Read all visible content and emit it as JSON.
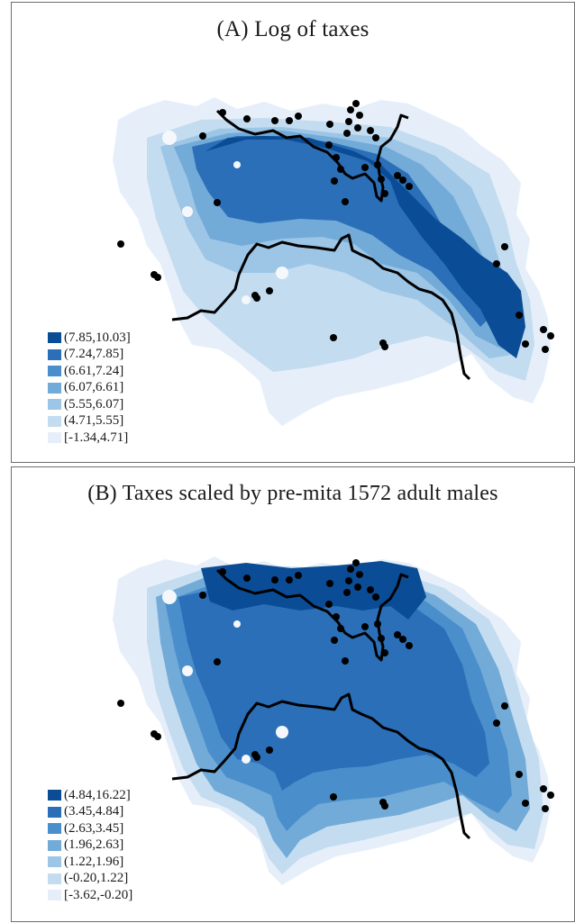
{
  "panels": [
    {
      "id": "A",
      "title": "(A) Log of taxes",
      "legend": [
        {
          "label": "(7.85,10.03]",
          "color": "#0a4d96"
        },
        {
          "label": "(7.24,7.85]",
          "color": "#2a6fb8"
        },
        {
          "label": "(6.61,7.24]",
          "color": "#4a8fcb"
        },
        {
          "label": "(6.07,6.61]",
          "color": "#72aad8"
        },
        {
          "label": "(5.55,6.07]",
          "color": "#9cc5e6"
        },
        {
          "label": "(4.71,5.55]",
          "color": "#c3dcf0"
        },
        {
          "label": "[-1.34,4.71]",
          "color": "#e6eff9"
        }
      ],
      "zones": [
        {
          "color": "#e6eff9"
        },
        {
          "color": "#c3dcf0"
        },
        {
          "color": "#9cc5e6"
        },
        {
          "color": "#72aad8"
        },
        {
          "color": "#2a6fb8"
        },
        {
          "color": "#0a4d96"
        }
      ]
    },
    {
      "id": "B",
      "title": "(B) Taxes scaled by pre-mita 1572 adult males",
      "legend": [
        {
          "label": "(4.84,16.22]",
          "color": "#0a4d96"
        },
        {
          "label": "(3.45,4.84]",
          "color": "#2a6fb8"
        },
        {
          "label": "(2.63,3.45]",
          "color": "#4a8fcb"
        },
        {
          "label": "(1.96,2.63]",
          "color": "#72aad8"
        },
        {
          "label": "(1.22,1.96]",
          "color": "#9cc5e6"
        },
        {
          "label": "(-0.20,1.22]",
          "color": "#c3dcf0"
        },
        {
          "label": "[-3.62,-0.20]",
          "color": "#e6eff9"
        }
      ],
      "zones": [
        {
          "color": "#e6eff9"
        },
        {
          "color": "#c3dcf0"
        },
        {
          "color": "#72aad8"
        },
        {
          "color": "#4a8fcb"
        },
        {
          "color": "#2a6fb8"
        },
        {
          "color": "#0a4d96"
        }
      ]
    }
  ],
  "map": {
    "boundary_color": "#000000",
    "point_color": "#000000"
  }
}
